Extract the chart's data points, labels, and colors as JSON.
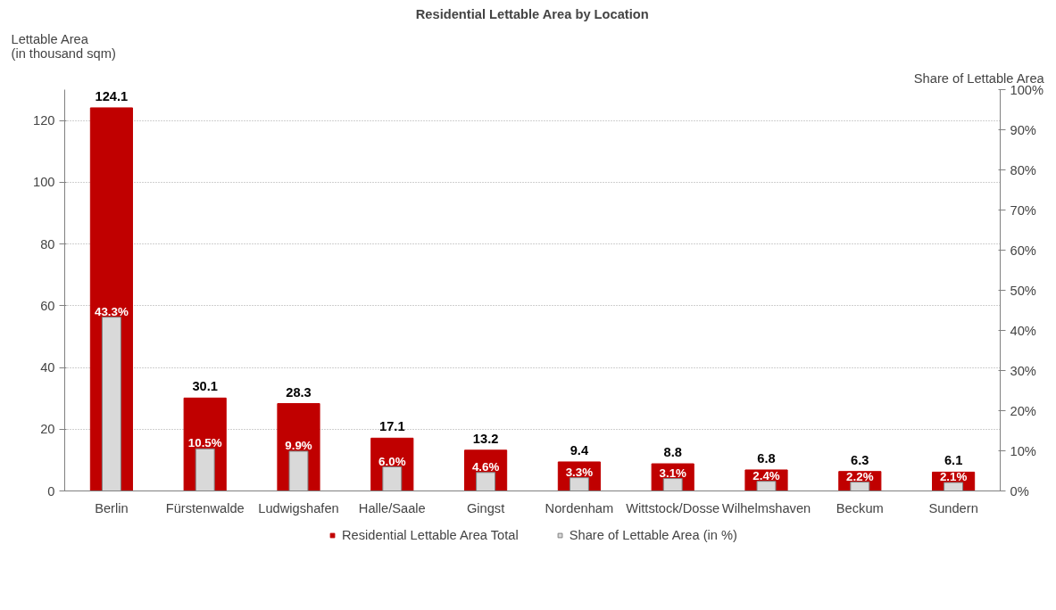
{
  "chart_data": {
    "type": "bar",
    "title": "Residential Lettable Area by Location",
    "ylabel": "Lettable Area\n(in thousand sqm)",
    "y2label": "Share of Lettable Area",
    "categories": [
      "Berlin",
      "Fürstenwalde",
      "Ludwigshafen",
      "Halle/Saale",
      "Gingst",
      "Nordenham",
      "Wittstock/Dosse",
      "Wilhelmshaven",
      "Beckum",
      "Sundern"
    ],
    "series": [
      {
        "name": "Residential Lettable Area Total",
        "color": "#c00000",
        "values": [
          124.1,
          30.1,
          28.3,
          17.1,
          13.2,
          9.4,
          8.8,
          6.8,
          6.3,
          6.1
        ],
        "value_labels": [
          "124.1",
          "30.1",
          "28.3",
          "17.1",
          "13.2",
          "9.4",
          "8.8",
          "6.8",
          "6.3",
          "6.1"
        ]
      },
      {
        "name": "Share of Lettable Area (in %)",
        "color": "#d9d9d9",
        "axis": "y2",
        "values": [
          43.3,
          10.5,
          9.9,
          6.0,
          4.6,
          3.3,
          3.1,
          2.4,
          2.2,
          2.1
        ],
        "value_labels": [
          "43.3%",
          "10.5%",
          "9.9%",
          "6.0%",
          "4.6%",
          "3.3%",
          "3.1%",
          "2.4%",
          "2.2%",
          "2.1%"
        ]
      }
    ],
    "ylim": [
      0,
      130
    ],
    "yticks": [
      0,
      20,
      40,
      60,
      80,
      100,
      120
    ],
    "y2lim": [
      0,
      100
    ],
    "y2ticks": [
      {
        "value": 0,
        "label": "0%"
      },
      {
        "value": 10,
        "label": "10%"
      },
      {
        "value": 20,
        "label": "20%"
      },
      {
        "value": 30,
        "label": "30%"
      },
      {
        "value": 40,
        "label": "40%"
      },
      {
        "value": 50,
        "label": "50%"
      },
      {
        "value": 60,
        "label": "60%"
      },
      {
        "value": 70,
        "label": "70%"
      },
      {
        "value": 80,
        "label": "80%"
      },
      {
        "value": 90,
        "label": "90%"
      },
      {
        "value": 100,
        "label": "100%"
      }
    ],
    "grid": "y",
    "legend": "bottom"
  }
}
